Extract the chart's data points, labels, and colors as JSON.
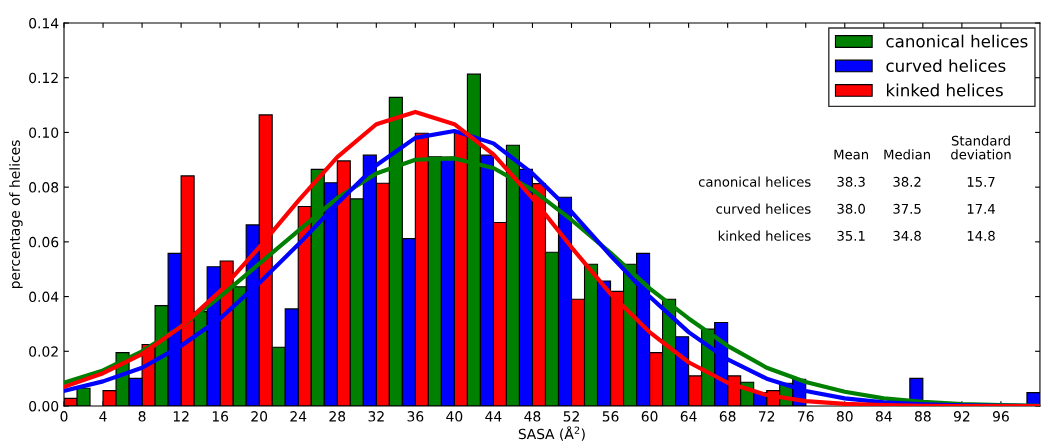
{
  "chart_data": {
    "type": "histogram",
    "xlabel": "SASA (Å$^{2}$)",
    "ylabel": "percentage of helices",
    "bins": [
      0,
      4,
      8,
      12,
      16,
      20,
      24,
      28,
      32,
      36,
      40,
      44,
      48,
      52,
      56,
      60,
      64,
      68,
      72,
      76,
      80,
      84,
      88,
      92,
      96,
      100
    ],
    "series": [
      {
        "name": "kinked helices",
        "color": "#ff0000",
        "values": [
          0.0028,
          0.0056,
          0.0225,
          0.0841,
          0.053,
          0.1064,
          0.0729,
          0.0896,
          0.0814,
          0.0997,
          0.0997,
          0.0671,
          0.0813,
          0.039,
          0.0419,
          0.0195,
          0.011,
          0.011,
          0.0056,
          null,
          null,
          null,
          null,
          null,
          null
        ]
      },
      {
        "name": "canonical helices",
        "color": "#008000",
        "values": [
          0.0065,
          0.0195,
          0.0367,
          0.0345,
          0.0436,
          0.0215,
          0.0865,
          0.0757,
          0.1128,
          0.0911,
          0.1213,
          0.0953,
          0.0562,
          0.0518,
          0.0518,
          0.039,
          0.0281,
          0.0087,
          0.0083,
          null,
          null,
          null,
          null,
          null,
          null
        ]
      },
      {
        "name": "curved helices",
        "color": "#0000ff",
        "values": [
          null,
          0.0101,
          0.0558,
          0.0509,
          0.0662,
          0.0355,
          0.0816,
          0.0917,
          0.0612,
          0.091,
          0.0917,
          0.0865,
          0.0763,
          0.0457,
          0.0558,
          0.0253,
          0.0305,
          0.0049,
          0.0098,
          null,
          null,
          0.0101,
          null,
          null,
          0.0049
        ]
      },
      {
        "type": "line",
        "color": "#008000",
        "x": [
          0,
          4,
          8,
          12,
          16,
          20,
          24,
          28,
          32,
          36,
          40,
          44,
          48,
          52,
          56,
          60,
          64,
          68,
          72,
          76,
          80,
          84,
          88,
          92,
          96,
          100
        ],
        "values": [
          0.0085,
          0.013,
          0.02,
          0.029,
          0.04,
          0.052,
          0.064,
          0.076,
          0.085,
          0.09,
          0.0905,
          0.087,
          0.079,
          0.068,
          0.056,
          0.043,
          0.032,
          0.022,
          0.014,
          0.0088,
          0.0052,
          0.0028,
          0.0015,
          0.0007,
          0.0003,
          0.0001
        ]
      },
      {
        "type": "line",
        "color": "#0000ff",
        "x": [
          0,
          4,
          8,
          12,
          16,
          20,
          24,
          28,
          32,
          36,
          40,
          44,
          48,
          52,
          56,
          60,
          64,
          68,
          72,
          76,
          80,
          84,
          88,
          92,
          96,
          100
        ],
        "values": [
          0.0055,
          0.009,
          0.014,
          0.022,
          0.032,
          0.045,
          0.059,
          0.074,
          0.088,
          0.098,
          0.1005,
          0.096,
          0.085,
          0.071,
          0.055,
          0.04,
          0.027,
          0.017,
          0.01,
          0.0055,
          0.0028,
          0.0013,
          0.0006,
          0.0002,
          0.0001,
          0
        ]
      },
      {
        "type": "line",
        "color": "#ff0000",
        "x": [
          0,
          4,
          8,
          12,
          16,
          20,
          24,
          28,
          32,
          36,
          40,
          44,
          48,
          52,
          56,
          60,
          64,
          68,
          72,
          76,
          80,
          84,
          88,
          92,
          96,
          100
        ],
        "values": [
          0.007,
          0.012,
          0.019,
          0.029,
          0.042,
          0.058,
          0.075,
          0.091,
          0.103,
          0.1075,
          0.103,
          0.092,
          0.076,
          0.058,
          0.041,
          0.027,
          0.016,
          0.0085,
          0.004,
          0.0018,
          0.0008,
          0.0003,
          0.0001,
          0,
          0,
          0
        ]
      }
    ],
    "xlim": [
      0,
      100
    ],
    "ylim": [
      0,
      0.14
    ],
    "xticks": [
      0,
      4,
      8,
      12,
      16,
      20,
      24,
      28,
      32,
      36,
      40,
      44,
      48,
      52,
      56,
      60,
      64,
      68,
      72,
      76,
      80,
      84,
      88,
      92,
      96
    ],
    "yticks": [
      {
        "value": 0,
        "label": "0.00"
      },
      {
        "value": 0.02,
        "label": "0.02"
      },
      {
        "value": 0.04,
        "label": "0.04"
      },
      {
        "value": 0.06,
        "label": "0.06"
      },
      {
        "value": 0.08,
        "label": "0.08"
      },
      {
        "value": 0.1,
        "label": "0.10"
      },
      {
        "value": 0.12,
        "label": "0.12"
      },
      {
        "value": 0.14,
        "label": "0.14"
      }
    ],
    "annotations": [
      "Mean",
      "Median",
      "Standard\ndeviation",
      "canonical helices",
      "38.3",
      "38.2",
      "15.7",
      "curved helices",
      "38.0",
      "37.5",
      "17.4",
      "kinked helices",
      "35.1",
      "34.8",
      "14.8"
    ],
    "grid": false,
    "legend": "top right",
    "line_style": "solid",
    "marker": "none"
  }
}
